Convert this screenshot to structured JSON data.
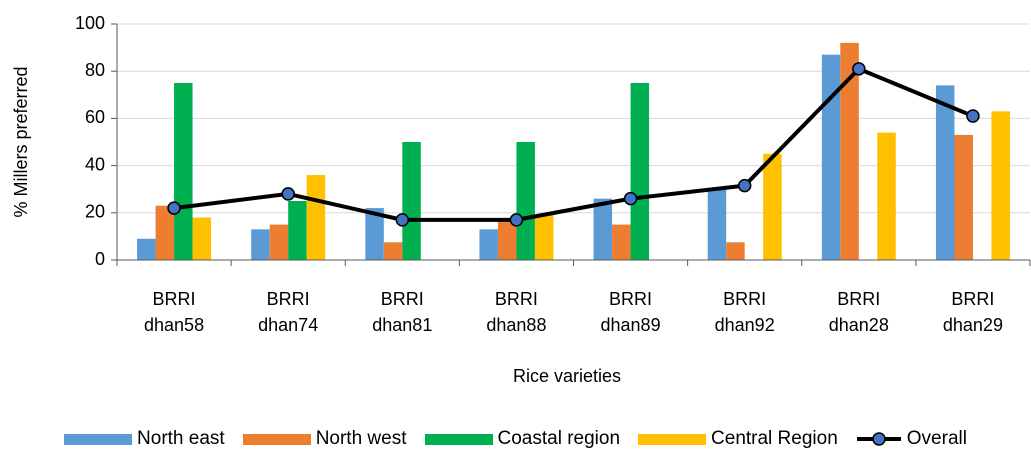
{
  "chart_data": {
    "type": "bar",
    "x_label": "Rice varieties",
    "y_label": "% Millers preferred",
    "categories": [
      "BRRI dhan58",
      "BRRI dhan74",
      "BRRI dhan81",
      "BRRI dhan88",
      "BRRI dhan89",
      "BRRI dhan92",
      "BRRI dhan28",
      "BRRI dhan29"
    ],
    "series": [
      {
        "name": "North east",
        "type": "bar",
        "color": "#5b9bd5",
        "values": [
          9,
          13,
          22,
          13,
          26,
          30,
          87,
          74
        ]
      },
      {
        "name": "North west",
        "type": "bar",
        "color": "#ed7d31",
        "values": [
          23,
          15,
          7.5,
          17,
          15,
          7.5,
          92,
          53
        ]
      },
      {
        "name": "Coastal region",
        "type": "bar",
        "color": "#00b050",
        "values": [
          75,
          25,
          50,
          50,
          75,
          0,
          0,
          0
        ]
      },
      {
        "name": "Central Region",
        "type": "bar",
        "color": "#ffc000",
        "values": [
          18,
          36,
          0,
          19,
          0,
          45,
          54,
          63
        ]
      },
      {
        "name": "Overall",
        "type": "line",
        "color": "#000000",
        "marker_color": "#4472c4",
        "values": [
          22,
          28,
          17,
          17,
          26,
          31.5,
          81,
          61
        ]
      }
    ],
    "ylim": [
      0,
      100
    ],
    "yticks": [
      0,
      20,
      40,
      60,
      80,
      100
    ],
    "grid": true,
    "legend": "bottom"
  }
}
